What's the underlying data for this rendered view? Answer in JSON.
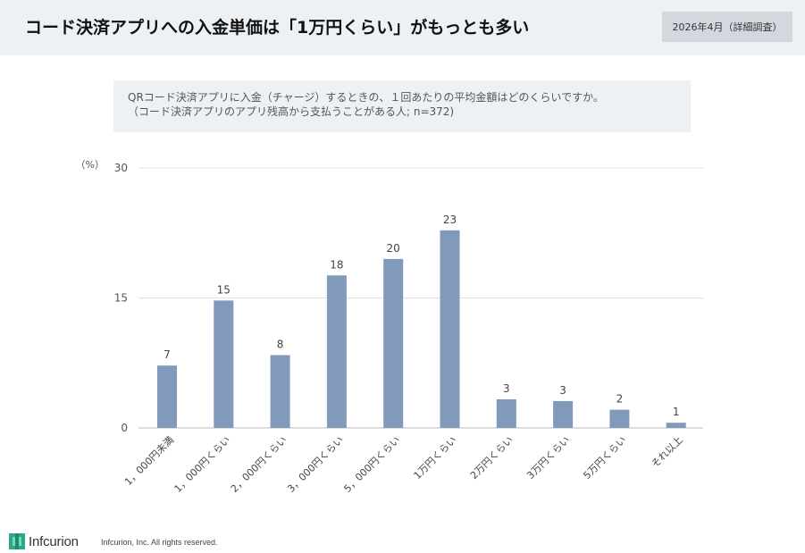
{
  "header": {
    "title": "コード決済アプリへの入金単価は「1万円くらい」がもっとも多い",
    "date_badge": "2026年4月（詳細調査）"
  },
  "question": {
    "line1": "QRコード決済アプリに入金（チャージ）するときの、１回あたりの平均金額はどのくらいですか。",
    "line2": "（コード決済アプリのアプリ残高から支払うことがある人; n=372)"
  },
  "chart_data": {
    "type": "bar",
    "unit_label": "（%）",
    "categories": [
      "1，000円未満",
      "1，000円くらい",
      "2，000円くらい",
      "3，000円くらい",
      "5，000円くらい",
      "1万円くらい",
      "2万円くらい",
      "3万円くらい",
      "5万円くらい",
      "それ以上"
    ],
    "values": [
      7,
      15,
      8,
      18,
      20,
      23,
      3,
      3,
      2,
      1
    ],
    "value_heights": [
      7.2,
      14.7,
      8.4,
      17.6,
      19.5,
      22.8,
      3.3,
      3.1,
      2.1,
      0.6
    ],
    "data_labels": [
      "7",
      "15",
      "8",
      "18",
      "20",
      "23",
      "3",
      "3",
      "2",
      "1"
    ],
    "yticks": [
      "0",
      "15",
      "30"
    ],
    "ylim": [
      0,
      30
    ],
    "bar_color": "#8199bb",
    "grid": true
  },
  "footer": {
    "logo_text": "Infcurion",
    "copyright": "Infcurion, Inc.  All rights reserved."
  },
  "colors": {
    "header_bg": "#eef1f4",
    "badge_bg": "#d3d8df",
    "logo_green": "#2aa88a"
  }
}
